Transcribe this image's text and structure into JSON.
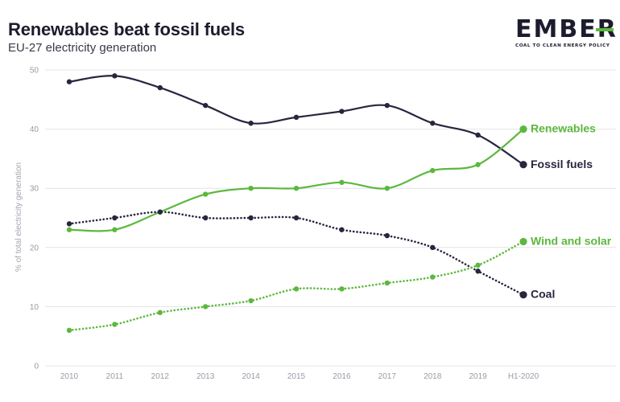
{
  "title": "Renewables beat fossil fuels",
  "subtitle": "EU-27 electricity generation",
  "logo": {
    "wordmark": "EMBER",
    "tagline": "COAL TO CLEAN ENERGY POLICY"
  },
  "colors": {
    "fossil": "#262640",
    "green": "#5cb83d",
    "grid": "#e4e4ea"
  },
  "chart_data": {
    "type": "line",
    "title": "Renewables beat fossil fuels",
    "subtitle": "EU-27 electricity generation",
    "xlabel": "",
    "ylabel": "% of total electricity generation",
    "ylim": [
      0,
      50
    ],
    "yticks": [
      0,
      10,
      20,
      30,
      40,
      50
    ],
    "grid": true,
    "legend": "end-of-line labels",
    "categories": [
      "2010",
      "2011",
      "2012",
      "2013",
      "2014",
      "2015",
      "2016",
      "2017",
      "2018",
      "2019",
      "H1-2020"
    ],
    "series": [
      {
        "name": "Fossil fuels",
        "style": "solid",
        "color": "#262640",
        "values": [
          48,
          49,
          47,
          44,
          41,
          42,
          43,
          44,
          41,
          39,
          34
        ]
      },
      {
        "name": "Renewables",
        "style": "solid",
        "color": "#5cb83d",
        "values": [
          23,
          23,
          26,
          29,
          30,
          30,
          31,
          30,
          33,
          34,
          40
        ]
      },
      {
        "name": "Coal",
        "style": "dotted",
        "color": "#262640",
        "values": [
          24,
          25,
          26,
          25,
          25,
          25,
          23,
          22,
          20,
          16,
          12
        ]
      },
      {
        "name": "Wind and solar",
        "style": "dotted",
        "color": "#5cb83d",
        "values": [
          6,
          7,
          9,
          10,
          11,
          13,
          13,
          14,
          15,
          17,
          21
        ]
      }
    ]
  }
}
